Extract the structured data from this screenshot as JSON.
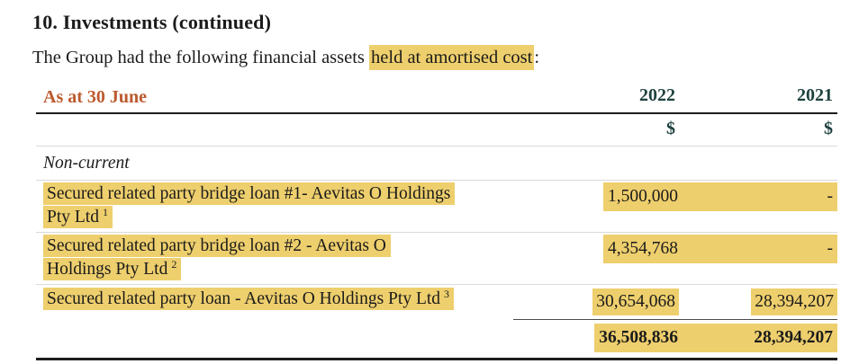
{
  "page": {
    "heading": "10. Investments (continued)",
    "intro_before": "The Group had the following financial assets ",
    "intro_highlight": "held at amortised cost",
    "intro_after": ":"
  },
  "table": {
    "header": {
      "label": "As at 30 June",
      "col2022": "2022",
      "col2021": "2021"
    },
    "currency_row": {
      "col2022": "$",
      "col2021": "$"
    },
    "section_label": "Non-current",
    "rows": [
      {
        "label_line1": "Secured related party bridge loan #1- Aevitas O Holdings",
        "label_line2": "Pty Ltd",
        "footnote": "1",
        "v2022": "1,500,000",
        "v2021": "-"
      },
      {
        "label_line1": "Secured related party bridge loan #2 - Aevitas O",
        "label_line2": "Holdings Pty Ltd",
        "footnote": "2",
        "v2022": "4,354,768",
        "v2021": "-"
      },
      {
        "label_line1": "Secured related party loan - Aevitas O Holdings Pty Ltd",
        "footnote": "3",
        "v2022": "30,654,068",
        "v2021": "28,394,207"
      }
    ],
    "total_row": {
      "v2022": "36,508,836",
      "v2021": "28,394,207"
    }
  },
  "colors": {
    "highlight_yellow": "#EECF6D",
    "accent_orange": "#BC5A2E",
    "accent_teal": "#1E423F",
    "divider_gray": "#DADADA",
    "rule_black": "#1C1C1C"
  }
}
